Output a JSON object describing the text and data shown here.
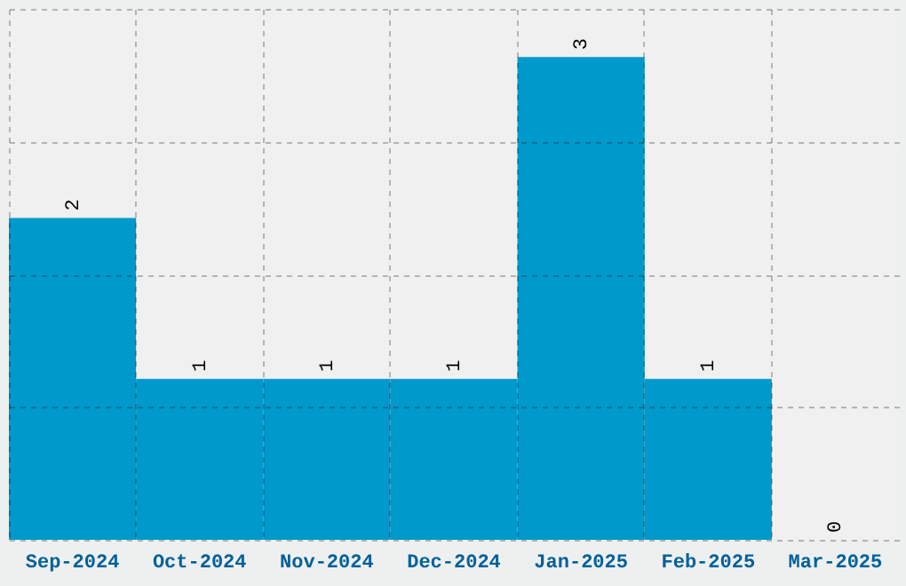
{
  "chart_data": {
    "type": "bar",
    "categories": [
      "Sep-2024",
      "Oct-2024",
      "Nov-2024",
      "Dec-2024",
      "Jan-2025",
      "Feb-2025",
      "Mar-2025"
    ],
    "values": [
      2,
      1,
      1,
      1,
      3,
      1,
      0
    ],
    "color": "#0099cc",
    "ylim": [
      0,
      3.3
    ],
    "yticks": [
      {
        "value": 0,
        "label": null
      },
      {
        "value": 0.825,
        "label": null
      },
      {
        "value": 1.65,
        "label": null
      },
      {
        "value": 2.475,
        "label": null
      },
      {
        "value": 3.3,
        "label": null
      }
    ],
    "data_labels": true,
    "grid": true
  }
}
